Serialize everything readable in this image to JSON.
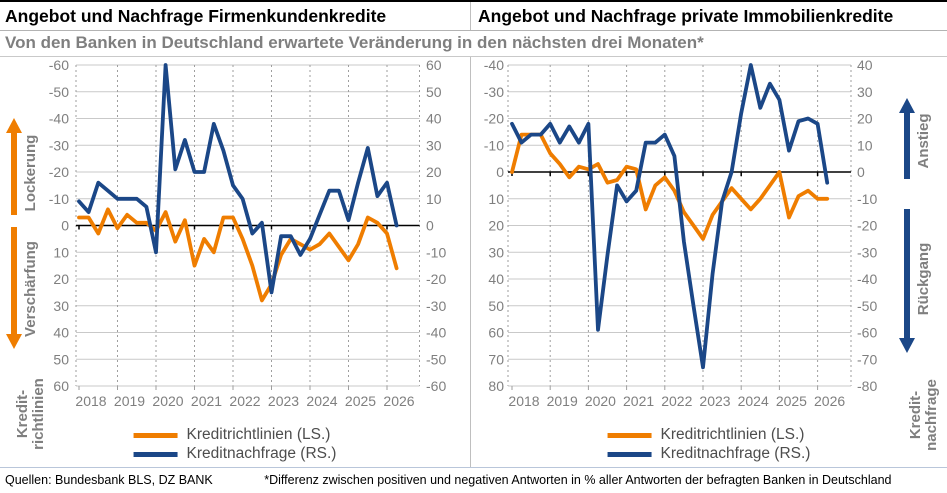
{
  "subtitle": "Von den Banken in Deutschland erwartete Veränderung in den nächsten drei Monaten*",
  "footer": {
    "sources": "Quellen: Bundesbank BLS, DZ BANK",
    "note": "*Differenz zwischen positiven und negativen Antworten in % aller Antworten der befragten Banken in Deutschland"
  },
  "colors": {
    "richtlinien": "#EF7D00",
    "nachfrage": "#1B4787",
    "grid": "#C9C9C9",
    "year_grid": "#9E9E9E",
    "zero_line": "#000000",
    "tick_text": "#7F7F7F",
    "legend_text": "#4D4D4D"
  },
  "side_labels": [
    {
      "up": "Lockerung",
      "down": "Verschärfung",
      "axis_line1": "Kredit-",
      "axis_line2": "richtlinien",
      "arrow_color_key": "richtlinien"
    },
    {
      "up": "Anstieg",
      "down": "Rückgang",
      "axis_line1": "Kredit-",
      "axis_line2": "nachfrage",
      "arrow_color_key": "nachfrage"
    }
  ],
  "chart_data": [
    {
      "type": "line",
      "title": "Angebot und Nachfrage Firmenkundenkredite",
      "ylim_left": [
        -60,
        60
      ],
      "ylim_right": [
        60,
        -60
      ],
      "y_step": 10,
      "x_tick_labels": [
        "2018",
        "2019",
        "2020",
        "2021",
        "2022",
        "2023",
        "2024",
        "2025",
        "2026"
      ],
      "categories": [
        "2018Q1",
        "2018Q2",
        "2018Q3",
        "2018Q4",
        "2019Q1",
        "2019Q2",
        "2019Q3",
        "2019Q4",
        "2020Q1",
        "2020Q2",
        "2020Q3",
        "2020Q4",
        "2021Q1",
        "2021Q2",
        "2021Q3",
        "2021Q4",
        "2022Q1",
        "2022Q2",
        "2022Q3",
        "2022Q4",
        "2023Q1",
        "2023Q2",
        "2023Q3",
        "2023Q4",
        "2024Q1",
        "2024Q2",
        "2024Q3",
        "2024Q4",
        "2025Q1",
        "2025Q2",
        "2025Q3",
        "2025Q4",
        "2026Q1",
        "2026Q2"
      ],
      "series": [
        {
          "name": "Kreditrichtlinien (LS.)",
          "axis": "left",
          "color_key": "richtlinien",
          "values": [
            -3,
            -3,
            3,
            -6,
            1,
            -4,
            -1,
            -1,
            2,
            -5,
            6,
            -2,
            15,
            5,
            10,
            -3,
            -3,
            5,
            15,
            28,
            22,
            11,
            5,
            7,
            9,
            7,
            3,
            8,
            13,
            7,
            -3,
            -1,
            3,
            16
          ]
        },
        {
          "name": "Kreditnachfrage (RS.)",
          "axis": "right",
          "color_key": "nachfrage",
          "values": [
            9,
            5,
            16,
            13,
            10,
            10,
            10,
            7,
            -10,
            60,
            21,
            32,
            20,
            20,
            38,
            28,
            15,
            10,
            -3,
            1,
            -25,
            -4,
            -4,
            -11,
            -5,
            4,
            13,
            13,
            2,
            16,
            29,
            11,
            16,
            0
          ]
        }
      ]
    },
    {
      "type": "line",
      "title": "Angebot und Nachfrage private Immobilienkredite",
      "ylim_left": [
        -40,
        80
      ],
      "ylim_right": [
        40,
        -80
      ],
      "y_step": 10,
      "x_tick_labels": [
        "2018",
        "2019",
        "2020",
        "2021",
        "2022",
        "2023",
        "2024",
        "2025",
        "2026"
      ],
      "categories": [
        "2018Q1",
        "2018Q2",
        "2018Q3",
        "2018Q4",
        "2019Q1",
        "2019Q2",
        "2019Q3",
        "2019Q4",
        "2020Q1",
        "2020Q2",
        "2020Q3",
        "2020Q4",
        "2021Q1",
        "2021Q2",
        "2021Q3",
        "2021Q4",
        "2022Q1",
        "2022Q2",
        "2022Q3",
        "2022Q4",
        "2023Q1",
        "2023Q2",
        "2023Q3",
        "2023Q4",
        "2024Q1",
        "2024Q2",
        "2024Q3",
        "2024Q4",
        "2025Q1",
        "2025Q2",
        "2025Q3",
        "2025Q4",
        "2026Q1",
        "2026Q2"
      ],
      "series": [
        {
          "name": "Kreditrichtlinien (LS.)",
          "axis": "left",
          "color_key": "richtlinien",
          "values": [
            0,
            -14,
            -14,
            -14,
            -7,
            -3,
            2,
            -2,
            -1,
            -3,
            4,
            3,
            -2,
            -1,
            14,
            5,
            2,
            7,
            15,
            20,
            25,
            16,
            11,
            6,
            10,
            14,
            10,
            5,
            0,
            17,
            9,
            7,
            10,
            10
          ]
        },
        {
          "name": "Kreditnachfrage (RS.)",
          "axis": "right",
          "color_key": "nachfrage",
          "values": [
            18,
            11,
            14,
            14,
            18,
            11,
            17,
            11,
            18,
            -59,
            -31,
            -5,
            -11,
            -7,
            11,
            11,
            14,
            6,
            -26,
            -50,
            -73,
            -38,
            -11,
            0,
            22,
            40,
            24,
            33,
            27,
            8,
            19,
            20,
            18,
            -4
          ]
        }
      ]
    }
  ]
}
